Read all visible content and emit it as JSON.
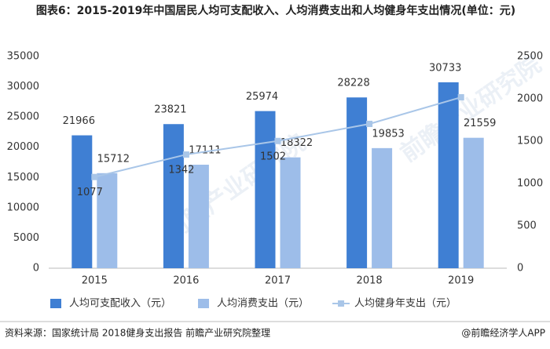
{
  "chart_data": {
    "type": "bar_line",
    "title": "图表6：2015-2019年中国居民人均可支配收入、人均消费支出和人均健身年支出情况(单位：元)",
    "categories": [
      "2015",
      "2016",
      "2017",
      "2018",
      "2019"
    ],
    "series": [
      {
        "name": "人均可支配收入（元）",
        "color": "#3f7fd3",
        "kind": "bar",
        "values": [
          21966,
          23821,
          25974,
          28228,
          30733
        ]
      },
      {
        "name": "人均消费支出（元）",
        "color": "#9dbde9",
        "kind": "bar",
        "values": [
          15712,
          17111,
          18322,
          19853,
          21559
        ]
      },
      {
        "name": "人均健身年支出（元）",
        "color": "#a9c6e8",
        "kind": "line",
        "axis": "y2",
        "values": [
          1077,
          1342,
          1502,
          1704,
          2018
        ],
        "show_value_labels": [
          true,
          true,
          true,
          false,
          false
        ]
      }
    ],
    "ylim": [
      0,
      35000
    ],
    "yticks": [
      0,
      5000,
      10000,
      15000,
      20000,
      25000,
      30000,
      35000
    ],
    "y2lim": [
      0,
      2500
    ],
    "y2ticks": [
      0,
      500,
      1000,
      1500,
      2000,
      2500
    ],
    "grid": false,
    "legend": "bottom",
    "source": "资料来源：国家统计局 2018健身支出报告 前瞻产业研究院整理",
    "credit": "@前瞻经济学人APP",
    "watermark": "前瞻产业研究院"
  }
}
